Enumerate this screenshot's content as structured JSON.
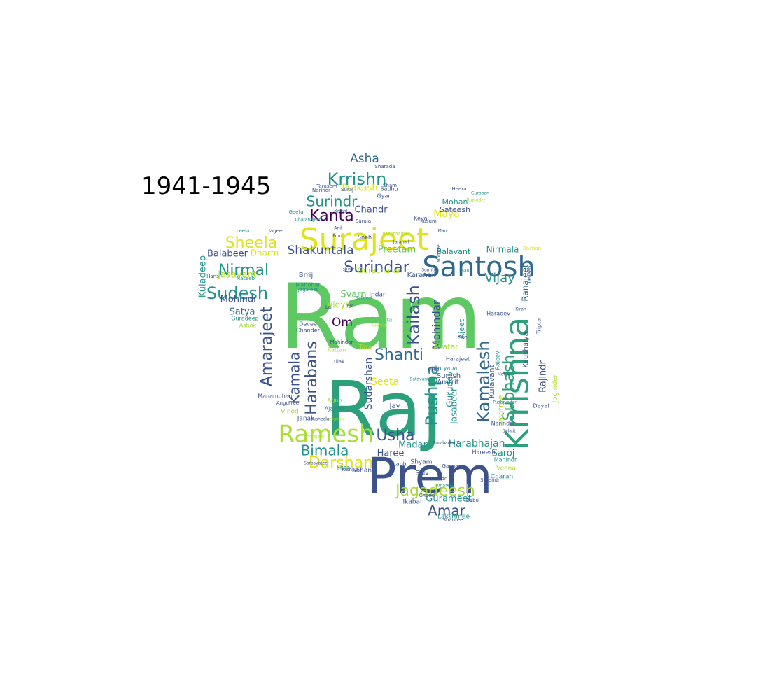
{
  "title": "1941-1945",
  "palette": {
    "dark_purple": "#440154",
    "indigo": "#3b528b",
    "blue": "#31688e",
    "teal": "#21918c",
    "green_teal": "#2ca07a",
    "green": "#5ec962",
    "lime": "#aadc32",
    "yellow": "#dfe318"
  },
  "words": [
    {
      "text": "Ram",
      "color": "green"
    },
    {
      "text": "Raj",
      "color": "green_teal"
    },
    {
      "text": "Prem",
      "color": "indigo"
    },
    {
      "text": "Krrishna",
      "color": "green_teal"
    },
    {
      "text": "Surajeet",
      "color": "yellow"
    },
    {
      "text": "Santosh",
      "color": "blue"
    },
    {
      "text": "Ramesh",
      "color": "lime"
    },
    {
      "text": "Kamalesh",
      "color": "blue"
    },
    {
      "text": "Subhash",
      "color": "green_teal"
    },
    {
      "text": "Krrishn",
      "color": "teal"
    },
    {
      "text": "Surindar",
      "color": "indigo"
    },
    {
      "text": "Kailash",
      "color": "indigo"
    },
    {
      "text": "Pushpa",
      "color": "teal"
    },
    {
      "text": "Sudesh",
      "color": "teal"
    },
    {
      "text": "Nirmal",
      "color": "teal"
    },
    {
      "text": "Amarajeet",
      "color": "indigo"
    },
    {
      "text": "Harabans",
      "color": "indigo"
    },
    {
      "text": "Jagadeesh",
      "color": "lime"
    },
    {
      "text": "Bimala",
      "color": "teal"
    },
    {
      "text": "Shanti",
      "color": "blue"
    },
    {
      "text": "Darshan",
      "color": "yellow"
    },
    {
      "text": "Kamala",
      "color": "indigo"
    },
    {
      "text": "Kanta",
      "color": "dark_purple"
    },
    {
      "text": "Surindr",
      "color": "teal"
    },
    {
      "text": "Sheela",
      "color": "yellow"
    },
    {
      "text": "Shakuntala",
      "color": "indigo"
    },
    {
      "text": "Usha",
      "color": "indigo"
    },
    {
      "text": "Amar",
      "color": "indigo"
    },
    {
      "text": "Asha",
      "color": "blue"
    },
    {
      "text": "Vijay",
      "color": "teal"
    },
    {
      "text": "Rajindr",
      "color": "indigo"
    },
    {
      "text": "Mohindar",
      "color": "indigo"
    },
    {
      "text": "Sudarshan",
      "color": "indigo"
    },
    {
      "text": "Harabhajan",
      "color": "teal"
    },
    {
      "text": "Preetam",
      "color": "green"
    },
    {
      "text": "Prakash",
      "color": "yellow"
    },
    {
      "text": "Chandr",
      "color": "indigo"
    },
    {
      "text": "Om",
      "color": "dark_purple"
    },
    {
      "text": "Ranajeet",
      "color": "blue"
    },
    {
      "text": "Balabeer",
      "color": "indigo"
    },
    {
      "text": "Satya",
      "color": "blue"
    },
    {
      "text": "Kuladeep",
      "color": "teal"
    },
    {
      "text": "Jasavant",
      "color": "lime"
    },
    {
      "text": "Mohindr",
      "color": "indigo"
    },
    {
      "text": "Dharm",
      "color": "yellow"
    },
    {
      "text": "Madan",
      "color": "teal"
    },
    {
      "text": "Saroj",
      "color": "teal"
    },
    {
      "text": "Gurameet",
      "color": "teal"
    },
    {
      "text": "Gurudev",
      "color": "teal"
    },
    {
      "text": "Jasabeer",
      "color": "teal"
    },
    {
      "text": "Nirmala",
      "color": "teal"
    },
    {
      "text": "Balavant",
      "color": "teal"
    },
    {
      "text": "Maya",
      "color": "yellow"
    },
    {
      "text": "Mohan",
      "color": "teal"
    },
    {
      "text": "Sateesh",
      "color": "indigo"
    },
    {
      "text": "Vidya",
      "color": "lime"
    },
    {
      "text": "Seeta",
      "color": "yellow"
    },
    {
      "text": "Svarn",
      "color": "green"
    },
    {
      "text": "Haree",
      "color": "indigo"
    },
    {
      "text": "Guracharan",
      "color": "lime"
    },
    {
      "text": "Karanail",
      "color": "indigo"
    },
    {
      "text": "Ajeet",
      "color": "teal"
    },
    {
      "text": "Kulavant",
      "color": "indigo"
    },
    {
      "text": "Avatar",
      "color": "lime"
    },
    {
      "text": "Suresh",
      "color": "indigo"
    },
    {
      "text": "Amrrit",
      "color": "indigo"
    },
    {
      "text": "Indar",
      "color": "indigo"
    },
    {
      "text": "Sharma",
      "color": "green"
    },
    {
      "text": "Tara",
      "color": "lime"
    },
    {
      "text": "Ved",
      "color": "indigo"
    },
    {
      "text": "Jay",
      "color": "indigo"
    },
    {
      "text": "Shiv",
      "color": "indigo"
    },
    {
      "text": "Labh",
      "color": "indigo"
    },
    {
      "text": "Shyam",
      "color": "indigo"
    },
    {
      "text": "Sohan",
      "color": "indigo"
    },
    {
      "text": "Sher",
      "color": "teal"
    },
    {
      "text": "Ikabal",
      "color": "indigo"
    },
    {
      "text": "Lakshmee",
      "color": "teal"
    },
    {
      "text": "Veena",
      "color": "lime"
    },
    {
      "text": "Charan",
      "color": "teal"
    },
    {
      "text": "Mahindr",
      "color": "teal"
    },
    {
      "text": "Hareesh",
      "color": "indigo"
    },
    {
      "text": "Narindar",
      "color": "indigo"
    },
    {
      "text": "Rajeev",
      "color": "teal"
    },
    {
      "text": "Savitree",
      "color": "lime"
    },
    {
      "text": "Kaushalya",
      "color": "indigo"
    },
    {
      "text": "Tripta",
      "color": "indigo"
    },
    {
      "text": "Haradev",
      "color": "indigo"
    },
    {
      "text": "Joginder",
      "color": "lime"
    },
    {
      "text": "Dayal",
      "color": "indigo"
    },
    {
      "text": "Keval",
      "color": "indigo"
    },
    {
      "text": "Kusum",
      "color": "indigo"
    },
    {
      "text": "Heera",
      "color": "indigo"
    },
    {
      "text": "Janak",
      "color": "indigo"
    },
    {
      "text": "Vinod",
      "color": "lime"
    },
    {
      "text": "Ajamer",
      "color": "teal"
    },
    {
      "text": "Arjun",
      "color": "lime"
    },
    {
      "text": "Manamohan",
      "color": "indigo"
    },
    {
      "text": "Angurree",
      "color": "indigo"
    },
    {
      "text": "Tilak",
      "color": "indigo"
    },
    {
      "text": "Devee",
      "color": "indigo"
    },
    {
      "text": "Chander",
      "color": "indigo"
    },
    {
      "text": "Lal",
      "color": "indigo"
    },
    {
      "text": "Brrij",
      "color": "indigo"
    },
    {
      "text": "Manohar",
      "color": "teal"
    },
    {
      "text": "Jagajeet",
      "color": "teal"
    },
    {
      "text": "Ashok",
      "color": "lime"
    },
    {
      "text": "Guradeep",
      "color": "teal"
    },
    {
      "text": "Satyapal",
      "color": "teal"
    },
    {
      "text": "Harajeet",
      "color": "indigo"
    },
    {
      "text": "Gyan",
      "color": "indigo"
    },
    {
      "text": "Sadhu",
      "color": "indigo"
    },
    {
      "text": "Sham",
      "color": "indigo"
    },
    {
      "text": "Sharada",
      "color": "indigo"
    },
    {
      "text": "Narindr",
      "color": "indigo"
    },
    {
      "text": "Tarasem",
      "color": "indigo"
    },
    {
      "text": "Suraj",
      "color": "indigo"
    },
    {
      "text": "Geeta",
      "color": "teal"
    },
    {
      "text": "Jageer",
      "color": "indigo"
    },
    {
      "text": "Leela",
      "color": "teal"
    },
    {
      "text": "Hans",
      "color": "indigo"
    },
    {
      "text": "Naseeb",
      "color": "teal"
    },
    {
      "text": "Rattan",
      "color": "lime"
    },
    {
      "text": "Mahindar",
      "color": "indigo"
    },
    {
      "text": "Dev",
      "color": "indigo"
    },
    {
      "text": "Sneh",
      "color": "indigo"
    },
    {
      "text": "Saraia",
      "color": "indigo"
    },
    {
      "text": "Kishan",
      "color": "indigo"
    },
    {
      "text": "Devindr",
      "color": "indigo"
    },
    {
      "text": "Surendr",
      "color": "indigo"
    },
    {
      "text": "Chand",
      "color": "indigo"
    },
    {
      "text": "Babu",
      "color": "indigo"
    },
    {
      "text": "Shantee",
      "color": "indigo"
    },
    {
      "text": "Ganga",
      "color": "indigo"
    },
    {
      "text": "Guraban",
      "color": "teal"
    },
    {
      "text": "Sumitra",
      "color": "indigo"
    },
    {
      "text": "Jaan",
      "color": "teal"
    },
    {
      "text": "Man",
      "color": "indigo"
    },
    {
      "text": "Mohinee",
      "color": "indigo"
    },
    {
      "text": "Jaranail",
      "color": "indigo"
    },
    {
      "text": "Bachan",
      "color": "yellow"
    },
    {
      "text": "Daleep",
      "color": "blue"
    },
    {
      "text": "Kamal",
      "color": "indigo"
    },
    {
      "text": "Paramajeet",
      "color": "lime"
    },
    {
      "text": "Charanajeet",
      "color": "teal"
    },
    {
      "text": "Anil",
      "color": "indigo"
    },
    {
      "text": "Purn",
      "color": "indigo"
    },
    {
      "text": "Ishvar",
      "color": "indigo"
    },
    {
      "text": "Balajeet",
      "color": "teal"
    },
    {
      "text": "Sushila",
      "color": "lime"
    },
    {
      "text": "Satavant",
      "color": "teal"
    },
    {
      "text": "Amareek",
      "color": "teal"
    },
    {
      "text": "Gurabachan",
      "color": "indigo"
    },
    {
      "text": "Indrajeet",
      "color": "lime"
    },
    {
      "text": "Satyavan",
      "color": "lime"
    },
    {
      "text": "Susheela",
      "color": "indigo"
    },
    {
      "text": "Sarasvatee",
      "color": "indigo"
    },
    {
      "text": "Dalajit",
      "color": "indigo"
    },
    {
      "text": "Yash",
      "color": "indigo"
    },
    {
      "text": "Mehar",
      "color": "indigo"
    },
    {
      "text": "Pushpinder",
      "color": "teal"
    },
    {
      "text": "Rupinder",
      "color": "lime"
    },
    {
      "text": "Kiran",
      "color": "indigo"
    },
    {
      "text": "Surjit",
      "color": "teal"
    }
  ]
}
